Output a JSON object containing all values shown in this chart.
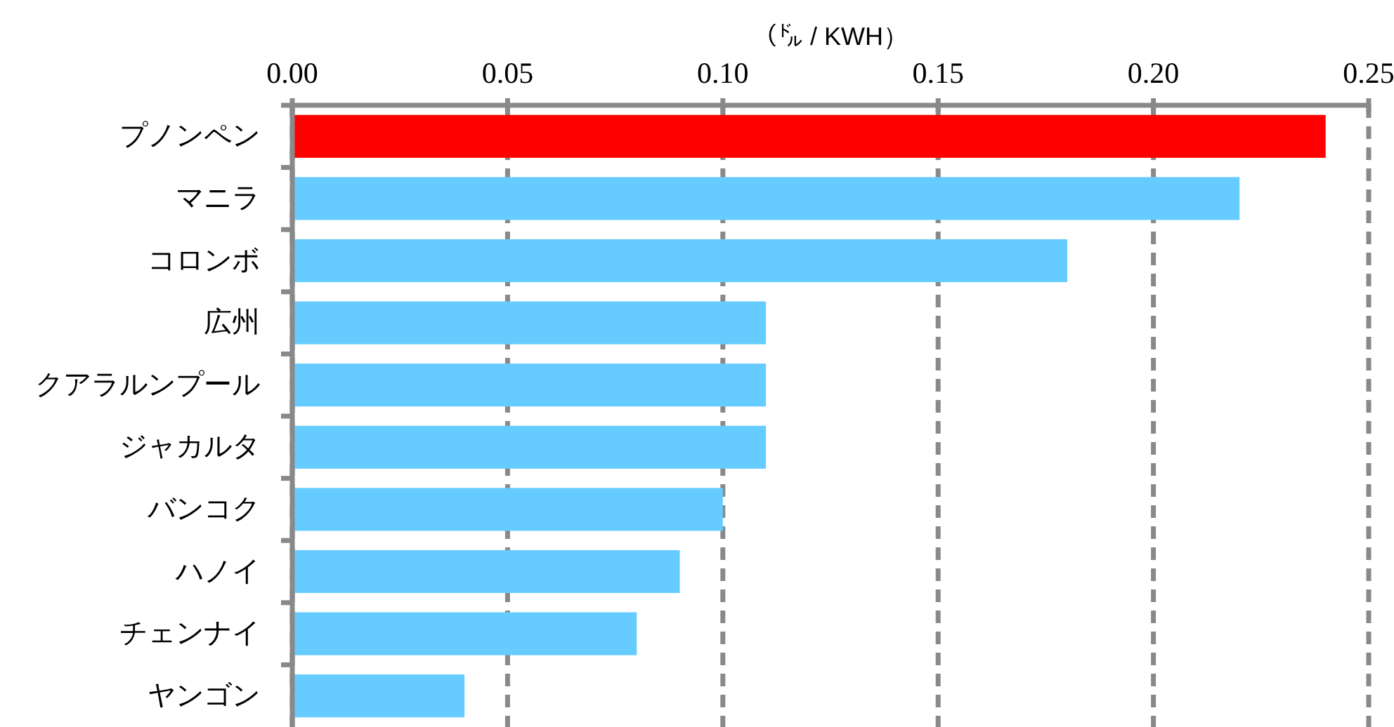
{
  "chart_data": {
    "type": "bar",
    "orientation": "horizontal",
    "xlabel": "（㌦ / KWH）",
    "categories": [
      "プノンペン",
      "マニラ",
      "コロンボ",
      "広州",
      "クアラルンプール",
      "ジャカルタ",
      "バンコク",
      "ハノイ",
      "チェンナイ",
      "ヤンゴン"
    ],
    "values": [
      0.24,
      0.22,
      0.18,
      0.11,
      0.11,
      0.11,
      0.1,
      0.09,
      0.08,
      0.04
    ],
    "colors": [
      "#ff0000",
      "#66ccff",
      "#66ccff",
      "#66ccff",
      "#66ccff",
      "#66ccff",
      "#66ccff",
      "#66ccff",
      "#66ccff",
      "#66ccff"
    ],
    "xlim": [
      0,
      0.25
    ],
    "xticks": [
      {
        "value": 0,
        "label": "0.00"
      },
      {
        "value": 0.05,
        "label": "0.05"
      },
      {
        "value": 0.1,
        "label": "0.10"
      },
      {
        "value": 0.15,
        "label": "0.15"
      },
      {
        "value": 0.2,
        "label": "0.20"
      },
      {
        "value": 0.25,
        "label": "0.25"
      }
    ],
    "grid": "x"
  }
}
